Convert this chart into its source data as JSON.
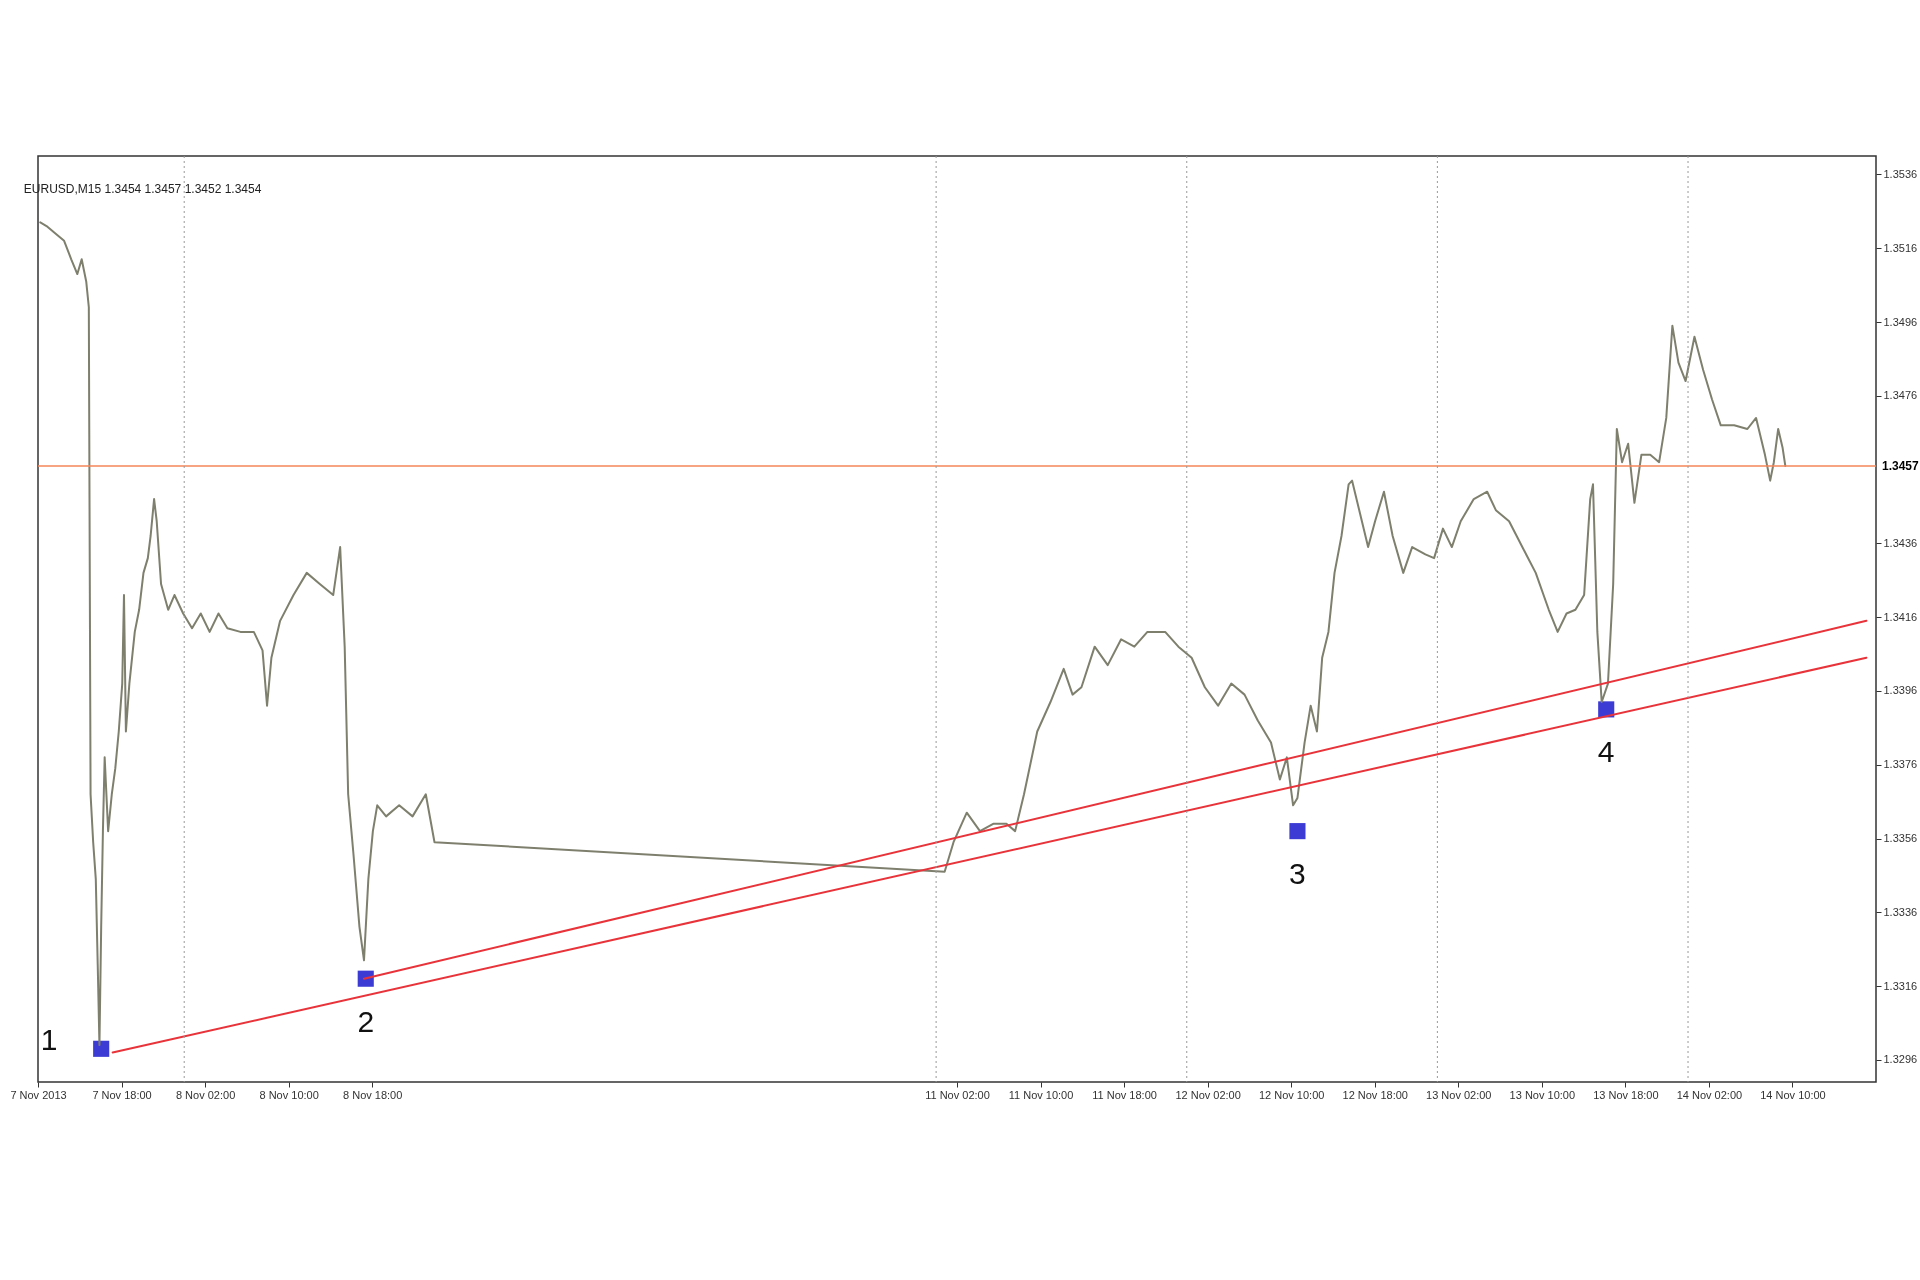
{
  "chart_data": {
    "type": "line",
    "title": "EURUSD,M15  1.3454 1.3457 1.3452 1.3454",
    "xlim": [
      "2013-11-07T10:00",
      "2013-11-14T18:00"
    ],
    "xticks": [
      {
        "value": "2013-11-07T10:00",
        "label": "7 Nov 2013"
      },
      {
        "value": "2013-11-07T18:00",
        "label": "7 Nov 18:00"
      },
      {
        "value": "2013-11-08T02:00",
        "label": "8 Nov 02:00"
      },
      {
        "value": "2013-11-08T10:00",
        "label": "8 Nov 10:00"
      },
      {
        "value": "2013-11-08T18:00",
        "label": "8 Nov 18:00"
      },
      {
        "value": "2013-11-11T02:00",
        "label": "11 Nov 02:00"
      },
      {
        "value": "2013-11-11T10:00",
        "label": "11 Nov 10:00"
      },
      {
        "value": "2013-11-11T18:00",
        "label": "11 Nov 18:00"
      },
      {
        "value": "2013-11-12T02:00",
        "label": "12 Nov 02:00"
      },
      {
        "value": "2013-11-12T10:00",
        "label": "12 Nov 10:00"
      },
      {
        "value": "2013-11-12T18:00",
        "label": "12 Nov 18:00"
      },
      {
        "value": "2013-11-13T02:00",
        "label": "13 Nov 02:00"
      },
      {
        "value": "2013-11-13T10:00",
        "label": "13 Nov 10:00"
      },
      {
        "value": "2013-11-13T18:00",
        "label": "13 Nov 18:00"
      },
      {
        "value": "2013-11-14T02:00",
        "label": "14 Nov 02:00"
      },
      {
        "value": "2013-11-14T10:00",
        "label": "14 Nov 10:00"
      }
    ],
    "ylim": [
      1.329,
      1.3541
    ],
    "yticks": [
      1.3296,
      1.3316,
      1.3336,
      1.3356,
      1.3376,
      1.3396,
      1.3416,
      1.3436,
      1.3476,
      1.3496,
      1.3516,
      1.3536
    ],
    "grid": false,
    "series": [
      {
        "color": "#7f7f6e",
        "x": [
          "2013-11-07T10:13",
          "2013-11-07T10:49",
          "2013-11-07T11:40",
          "2013-11-07T12:30",
          "2013-11-07T13:11",
          "2013-11-07T13:46",
          "2013-11-07T14:11",
          "2013-11-07T14:37",
          "2013-11-07T14:52",
          "2013-11-07T15:02",
          "2013-11-07T15:17",
          "2013-11-07T15:32",
          "2013-11-07T15:43",
          "2013-11-07T15:53",
          "2013-11-07T16:03",
          "2013-11-07T16:13",
          "2013-11-07T16:23",
          "2013-11-07T16:43",
          "2013-11-07T17:04",
          "2013-11-07T17:24",
          "2013-11-07T17:44",
          "2013-11-07T18:04",
          "2013-11-07T18:14",
          "2013-11-07T18:25",
          "2013-11-07T18:45",
          "2013-11-07T19:16",
          "2013-11-07T19:41",
          "2013-11-07T20:06",
          "2013-11-07T20:31",
          "2013-11-07T20:47",
          "2013-11-07T21:07",
          "2013-11-07T21:22",
          "2013-11-07T21:47",
          "2013-11-07T22:28",
          "2013-11-07T23:04",
          "2013-11-07T23:54",
          "2013-11-08T00:45",
          "2013-11-08T01:35",
          "2013-11-08T02:26",
          "2013-11-08T03:17",
          "2013-11-08T04:08",
          "2013-11-08T05:23",
          "2013-11-08T06:40",
          "2013-11-08T07:30",
          "2013-11-08T07:56",
          "2013-11-08T08:21",
          "2013-11-08T09:11",
          "2013-11-08T10:28",
          "2013-11-08T11:44",
          "2013-11-08T12:59",
          "2013-11-08T14:16",
          "2013-11-08T14:56",
          "2013-11-08T15:22",
          "2013-11-08T15:42",
          "2013-11-08T16:12",
          "2013-11-08T16:47",
          "2013-11-08T17:13",
          "2013-11-08T17:38",
          "2013-11-08T18:04",
          "2013-11-08T18:29",
          "2013-11-08T19:20",
          "2013-11-08T20:35",
          "2013-11-08T21:52",
          "2013-11-08T23:08",
          "2013-11-08T23:58",
          "2013-11-11T00:49",
          "2013-11-11T01:40",
          "2013-11-11T02:56",
          "2013-11-11T04:12",
          "2013-11-11T05:28",
          "2013-11-11T06:44",
          "2013-11-11T07:34",
          "2013-11-11T08:25",
          "2013-11-11T09:41",
          "2013-11-11T10:57",
          "2013-11-11T12:13",
          "2013-11-11T13:04",
          "2013-11-11T13:55",
          "2013-11-11T15:11",
          "2013-11-11T16:26",
          "2013-11-11T17:43",
          "2013-11-11T18:59",
          "2013-11-11T20:14",
          "2013-11-11T21:56",
          "2013-11-11T23:12",
          "2013-11-12T00:28",
          "2013-11-12T01:44",
          "2013-11-12T03:00",
          "2013-11-12T04:16",
          "2013-11-12T05:32",
          "2013-11-12T06:48",
          "2013-11-12T08:04",
          "2013-11-12T08:55",
          "2013-11-12T09:35",
          "2013-11-12T10:11",
          "2013-11-12T10:36",
          "2013-11-12T11:17",
          "2013-11-12T11:52",
          "2013-11-12T12:28",
          "2013-11-12T12:58",
          "2013-11-12T13:34",
          "2013-11-12T14:09",
          "2013-11-12T14:49",
          "2013-11-12T15:30",
          "2013-11-12T15:50",
          "2013-11-12T16:31",
          "2013-11-12T17:22",
          "2013-11-12T18:02",
          "2013-11-12T18:53",
          "2013-11-12T19:43",
          "2013-11-12T20:44",
          "2013-11-12T21:35",
          "2013-11-12T22:51",
          "2013-11-12T23:41",
          "2013-11-13T00:32",
          "2013-11-13T01:23",
          "2013-11-13T02:14",
          "2013-11-13T03:29",
          "2013-11-13T04:46",
          "2013-11-13T05:36",
          "2013-11-13T06:52",
          "2013-11-13T08:08",
          "2013-11-13T09:25",
          "2013-11-13T10:40",
          "2013-11-13T11:31",
          "2013-11-13T12:22",
          "2013-11-13T13:13",
          "2013-11-13T14:03",
          "2013-11-13T14:38",
          "2013-11-13T14:54",
          "2013-11-13T15:19",
          "2013-11-13T15:44",
          "2013-11-13T16:20",
          "2013-11-13T16:50",
          "2013-11-13T17:11",
          "2013-11-13T17:41",
          "2013-11-13T18:16",
          "2013-11-13T18:52",
          "2013-11-13T19:32",
          "2013-11-13T20:23",
          "2013-11-13T21:14",
          "2013-11-13T21:55",
          "2013-11-13T22:30",
          "2013-11-13T23:05",
          "2013-11-13T23:46",
          "2013-11-14T00:37",
          "2013-11-14T01:27",
          "2013-11-14T02:18",
          "2013-11-14T03:08",
          "2013-11-14T04:25",
          "2013-11-14T05:41",
          "2013-11-14T06:31",
          "2013-11-14T07:22",
          "2013-11-14T07:52",
          "2013-11-14T08:13",
          "2013-11-14T08:38",
          "2013-11-14T09:03",
          "2013-11-14T09:19"
        ],
        "values": [
          1.3523,
          1.3522,
          1.352,
          1.3518,
          1.3513,
          1.3509,
          1.3513,
          1.3507,
          1.35,
          1.3368,
          1.3355,
          1.3345,
          1.3322,
          1.33,
          1.3332,
          1.3358,
          1.3378,
          1.3358,
          1.3368,
          1.3375,
          1.3385,
          1.3398,
          1.3422,
          1.3385,
          1.3398,
          1.3412,
          1.3418,
          1.3428,
          1.3432,
          1.3438,
          1.3448,
          1.3442,
          1.3425,
          1.3418,
          1.3422,
          1.3417,
          1.3413,
          1.3417,
          1.3412,
          1.3417,
          1.3413,
          1.3412,
          1.3412,
          1.3407,
          1.3392,
          1.3405,
          1.3415,
          1.3422,
          1.3428,
          1.3425,
          1.3422,
          1.3435,
          1.3408,
          1.3368,
          1.3352,
          1.3332,
          1.3323,
          1.3345,
          1.3358,
          1.3365,
          1.3362,
          1.3365,
          1.3362,
          1.3368,
          1.3355,
          1.3347,
          1.3355,
          1.3363,
          1.3358,
          1.336,
          1.336,
          1.3358,
          1.3368,
          1.3385,
          1.3393,
          1.3402,
          1.3395,
          1.3397,
          1.3408,
          1.3403,
          1.341,
          1.3408,
          1.3412,
          1.3412,
          1.3408,
          1.3405,
          1.3397,
          1.3392,
          1.3398,
          1.3395,
          1.3388,
          1.3382,
          1.3372,
          1.3378,
          1.3365,
          1.3367,
          1.3382,
          1.3392,
          1.3385,
          1.3405,
          1.3412,
          1.3428,
          1.3438,
          1.3452,
          1.3453,
          1.3445,
          1.3435,
          1.3442,
          1.345,
          1.3438,
          1.3428,
          1.3435,
          1.3433,
          1.3432,
          1.344,
          1.3435,
          1.3442,
          1.3448,
          1.345,
          1.3445,
          1.3442,
          1.3435,
          1.3428,
          1.3418,
          1.3412,
          1.3417,
          1.3418,
          1.3422,
          1.3448,
          1.3452,
          1.3412,
          1.3393,
          1.3398,
          1.3425,
          1.3467,
          1.3458,
          1.3463,
          1.3447,
          1.346,
          1.346,
          1.3458,
          1.347,
          1.3495,
          1.3485,
          1.348,
          1.3492,
          1.3483,
          1.3475,
          1.3468,
          1.3468,
          1.3467,
          1.347,
          1.346,
          1.3453,
          1.3458,
          1.3467,
          1.3462,
          1.3457
        ]
      },
      {
        "type": "line",
        "color": "#e8333a",
        "x": [
          "2013-11-07T17:09",
          "2013-11-14T17:05"
        ],
        "values": [
          1.3298,
          1.3405
        ]
      },
      {
        "type": "line",
        "color": "#e8333a",
        "x": [
          "2013-11-08T17:13",
          "2013-11-14T17:05"
        ],
        "values": [
          1.3318,
          1.3415
        ]
      },
      {
        "type": "scatter",
        "color": "#1a1acc",
        "marker": "square",
        "x": [
          "2013-11-07T16:03",
          "2013-11-08T17:23",
          "2013-11-12T10:36",
          "2013-11-13T16:10"
        ],
        "values": [
          1.3299,
          1.3318,
          1.3358,
          1.3391
        ]
      }
    ],
    "ref_lines": [
      {
        "axis": "y",
        "value": 1.3457,
        "label": "1.3457",
        "color": "#f4865a",
        "line_style": "solid"
      },
      {
        "axis": "x",
        "value": "2013-11-08T00:00",
        "label": null,
        "color": "#999999",
        "line_style": "dotted"
      },
      {
        "axis": "x",
        "value": "2013-11-11T00:00",
        "label": null,
        "color": "#999999",
        "line_style": "dotted"
      },
      {
        "axis": "x",
        "value": "2013-11-12T00:00",
        "label": null,
        "color": "#999999",
        "line_style": "dotted"
      },
      {
        "axis": "x",
        "value": "2013-11-13T00:00",
        "label": null,
        "color": "#999999",
        "line_style": "dotted"
      },
      {
        "axis": "x",
        "value": "2013-11-14T00:00",
        "label": null,
        "color": "#999999",
        "line_style": "dotted"
      }
    ],
    "annotations": [
      "1",
      "2",
      "3",
      "4"
    ]
  }
}
